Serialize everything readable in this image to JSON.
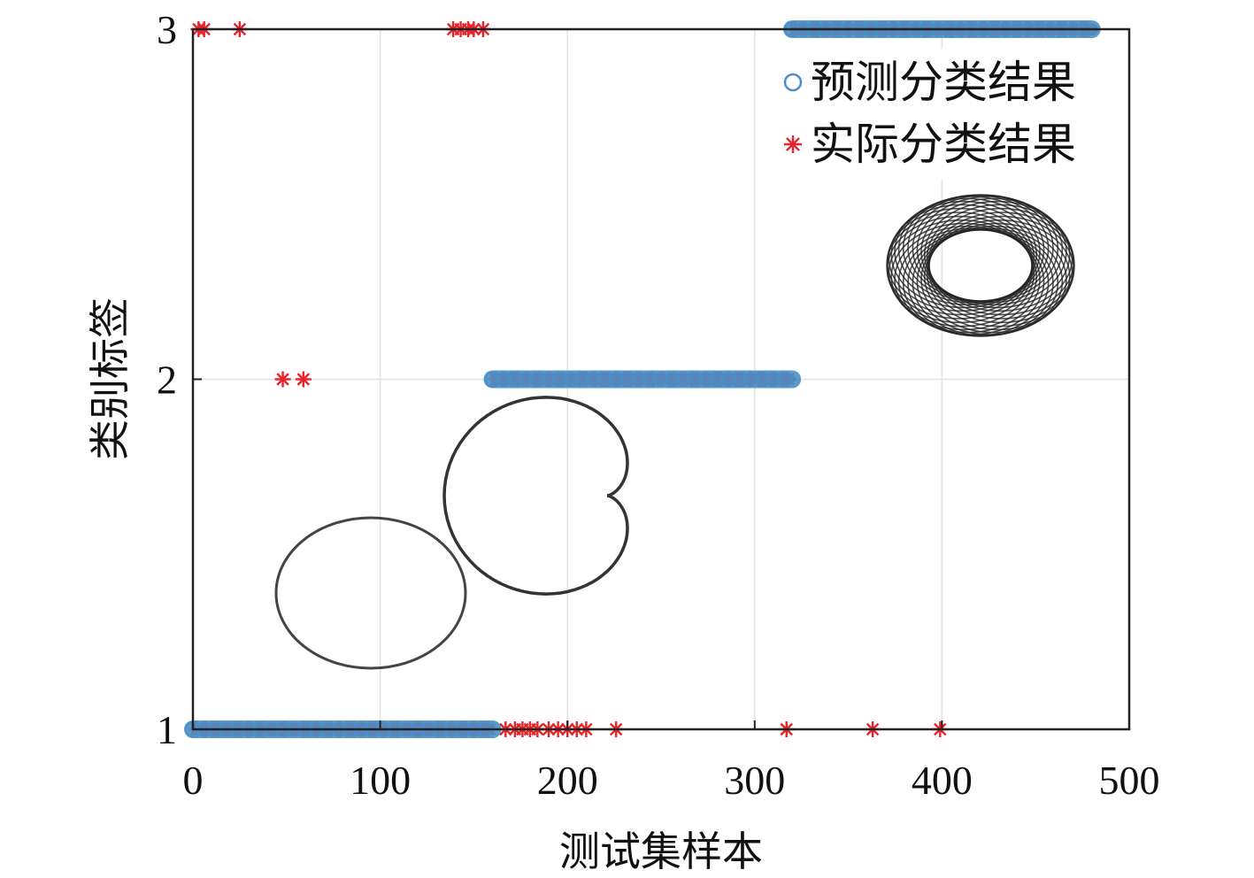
{
  "chart_data": {
    "type": "scatter",
    "xlabel": "测试集样本",
    "ylabel": "类别标签",
    "xlim": [
      0,
      500
    ],
    "ylim": [
      1,
      3
    ],
    "xticks": [
      "0",
      "100",
      "200",
      "300",
      "400",
      "500"
    ],
    "yticks": [
      "1",
      "2",
      "3"
    ],
    "grid": true,
    "legend": "top-right",
    "series": [
      {
        "name": "预测分类结果",
        "marker": "circle",
        "color": "#4a90c8",
        "segments": [
          {
            "x0": 0,
            "x1": 160,
            "y": 1
          },
          {
            "x0": 160,
            "x1": 320,
            "y": 2
          },
          {
            "x0": 320,
            "x1": 480,
            "y": 3
          }
        ]
      },
      {
        "name": "实际分类结果",
        "marker": "asterisk",
        "color": "#e8232a",
        "segments": [
          {
            "x0": 2,
            "x1": 158,
            "y": 1
          },
          {
            "x0": 162,
            "x1": 318,
            "y": 2
          },
          {
            "x0": 322,
            "x1": 480,
            "y": 3
          }
        ],
        "points": [
          {
            "x": 3,
            "y": 3
          },
          {
            "x": 6,
            "y": 3
          },
          {
            "x": 25,
            "y": 3
          },
          {
            "x": 139,
            "y": 3
          },
          {
            "x": 143,
            "y": 3
          },
          {
            "x": 147,
            "y": 3
          },
          {
            "x": 150,
            "y": 3
          },
          {
            "x": 155,
            "y": 3
          },
          {
            "x": 48,
            "y": 2
          },
          {
            "x": 59,
            "y": 2
          },
          {
            "x": 167,
            "y": 1
          },
          {
            "x": 172,
            "y": 1
          },
          {
            "x": 176,
            "y": 1
          },
          {
            "x": 180,
            "y": 1
          },
          {
            "x": 184,
            "y": 1
          },
          {
            "x": 190,
            "y": 1
          },
          {
            "x": 195,
            "y": 1
          },
          {
            "x": 200,
            "y": 1
          },
          {
            "x": 205,
            "y": 1
          },
          {
            "x": 210,
            "y": 1
          },
          {
            "x": 226,
            "y": 1
          },
          {
            "x": 317,
            "y": 1
          },
          {
            "x": 363,
            "y": 1
          },
          {
            "x": 399,
            "y": 1
          }
        ]
      }
    ]
  },
  "colors": {
    "predicted": "#4a90c8",
    "actual": "#e8232a",
    "grid": "#e2e2e2",
    "axis": "#222222",
    "inset": "#333333"
  },
  "insets": [
    "circle-orbit-icon",
    "cardioid-orbit-icon",
    "torus-orbit-icon"
  ]
}
